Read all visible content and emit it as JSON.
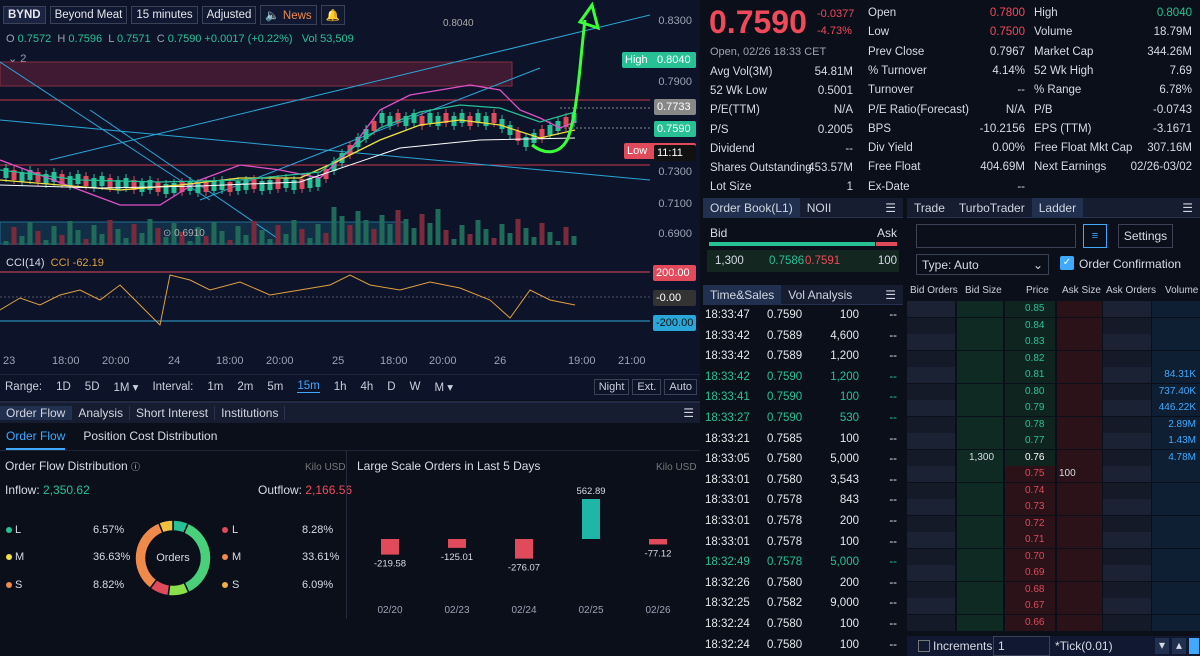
{
  "toolbar": {
    "symbol": "BYND",
    "name": "Beyond Meat",
    "interval": "15 minutes",
    "adjusted": "Adjusted",
    "news": "News"
  },
  "ohlc": {
    "o_label": "O",
    "o": "0.7572",
    "h_label": "H",
    "h": "0.7596",
    "l_label": "L",
    "l": "0.7571",
    "c_label": "C",
    "c": "0.7590",
    "change": "+0.0017 (+0.22%)",
    "vol_label": "Vol",
    "vol": "53,509",
    "sub": "2"
  },
  "price_axis": {
    "ticks": [
      "0.8300",
      "0.8040",
      "0.7900",
      "0.7733",
      "0.7590",
      "0.7300",
      "0.7100",
      "0.6900"
    ],
    "high_tag": "High",
    "high_value": "0.8040",
    "low_tag": "Low",
    "low_value": "11:11",
    "last_value": "0.7590",
    "mid_value": "0.7733",
    "annot_high": "0.8040",
    "annot_low": "0.6910"
  },
  "cci": {
    "label": "CCI(14)",
    "value_label": "CCI",
    "value": "-62.19",
    "upper": "200.00",
    "zero": "-0.00",
    "lower": "-200.00"
  },
  "x_axis": [
    "23",
    "18:00",
    "20:00",
    "24",
    "18:00",
    "20:00",
    "25",
    "18:00",
    "20:00",
    "26",
    "19:00",
    "21:00"
  ],
  "range_bar": {
    "range_label": "Range:",
    "ranges": [
      "1D",
      "5D",
      "1M ▾"
    ],
    "interval_label": "Interval:",
    "intervals": [
      "1m",
      "2m",
      "5m",
      "15m",
      "1h",
      "4h",
      "D",
      "W",
      "M ▾"
    ],
    "buttons": [
      "Night",
      "Ext.",
      "Auto"
    ]
  },
  "order_flow": {
    "tabs": [
      "Order Flow",
      "Analysis",
      "Short Interest",
      "Institutions"
    ],
    "subtabs": [
      "Order Flow",
      "Position Cost Distribution"
    ],
    "dist_title": "Order Flow Distribution",
    "unit": "Kilo USD",
    "inflow_label": "Inflow:",
    "inflow": "2,350.62",
    "outflow_label": "Outflow:",
    "outflow": "2,166.56",
    "donut_label": "Orders",
    "left": [
      {
        "k": "L",
        "v": "6.57%"
      },
      {
        "k": "M",
        "v": "36.63%"
      },
      {
        "k": "S",
        "v": "8.82%"
      }
    ],
    "right": [
      {
        "k": "L",
        "v": "8.28%"
      },
      {
        "k": "M",
        "v": "33.61%"
      },
      {
        "k": "S",
        "v": "6.09%"
      }
    ],
    "colors": {
      "L": "#27c195",
      "M": "#f0e040",
      "S": "#f08a4a"
    }
  },
  "large_orders": {
    "title": "Large Scale Orders in Last 5 Days",
    "unit": "Kilo USD",
    "type": "bar",
    "categories": [
      "02/20",
      "02/23",
      "02/24",
      "02/25",
      "02/26"
    ],
    "values": [
      -219.58,
      -125.01,
      -276.07,
      562.89,
      -77.12
    ],
    "labels": [
      "-219.58",
      "-125.01",
      "-276.07",
      "562.89",
      "-77.12"
    ]
  },
  "quote": {
    "price": "0.7590",
    "change": "-0.0377",
    "change_pct": "-4.73%",
    "time": "Open, 02/26 18:33 CET",
    "col1": [
      [
        "Open",
        "0.7800"
      ],
      [
        "Low",
        "0.7500"
      ],
      [
        "Prev Close",
        "0.7967"
      ],
      [
        "% Turnover",
        "4.14%"
      ],
      [
        "Turnover",
        "--"
      ],
      [
        "P/E Ratio(Forecast)",
        "N/A"
      ],
      [
        "BPS",
        "-10.2156"
      ],
      [
        "Div Yield",
        "0.00%"
      ],
      [
        "Free Float",
        "404.69M"
      ],
      [
        "Ex-Date",
        "--"
      ]
    ],
    "col0": [
      [
        "Avg Vol(3M)",
        "54.81M"
      ],
      [
        "52 Wk Low",
        "0.5001"
      ],
      [
        "P/E(TTM)",
        "N/A"
      ],
      [
        "P/S",
        "0.2005"
      ],
      [
        "Dividend",
        "--"
      ],
      [
        "Shares Outstanding",
        "453.57M"
      ],
      [
        "Lot Size",
        "1"
      ]
    ],
    "col2": [
      [
        "High",
        "0.8040"
      ],
      [
        "Volume",
        "18.79M"
      ],
      [
        "Market Cap",
        "344.26M"
      ],
      [
        "52 Wk High",
        "7.69"
      ],
      [
        "% Range",
        "6.78%"
      ],
      [
        "P/B",
        "-0.0743"
      ],
      [
        "EPS (TTM)",
        "-3.1671"
      ],
      [
        "Free Float Mkt Cap",
        "307.16M"
      ],
      [
        "Next Earnings",
        "02/26-03/02"
      ]
    ]
  },
  "orderbook": {
    "tabs": [
      "Order Book(L1)",
      "NOII"
    ],
    "bid": "Bid",
    "ask": "Ask",
    "bid_size": "1,300",
    "bid_price": "0.7586",
    "ask_price": "0.7591",
    "ask_size": "100"
  },
  "timesales": {
    "tabs": [
      "Time&Sales",
      "Vol Analysis"
    ],
    "rows": [
      [
        "18:33:47",
        "0.7590",
        "100",
        "--",
        "w"
      ],
      [
        "18:33:42",
        "0.7589",
        "4,600",
        "--",
        "w"
      ],
      [
        "18:33:42",
        "0.7589",
        "1,200",
        "--",
        "w"
      ],
      [
        "18:33:42",
        "0.7590",
        "1,200",
        "--",
        "g"
      ],
      [
        "18:33:41",
        "0.7590",
        "100",
        "--",
        "g"
      ],
      [
        "18:33:27",
        "0.7590",
        "530",
        "--",
        "g"
      ],
      [
        "18:33:21",
        "0.7585",
        "100",
        "--",
        "w"
      ],
      [
        "18:33:05",
        "0.7580",
        "5,000",
        "--",
        "w"
      ],
      [
        "18:33:01",
        "0.7580",
        "3,543",
        "--",
        "w"
      ],
      [
        "18:33:01",
        "0.7578",
        "843",
        "--",
        "w"
      ],
      [
        "18:33:01",
        "0.7578",
        "200",
        "--",
        "w"
      ],
      [
        "18:33:01",
        "0.7578",
        "100",
        "--",
        "w"
      ],
      [
        "18:32:49",
        "0.7578",
        "5,000",
        "--",
        "g"
      ],
      [
        "18:32:26",
        "0.7580",
        "200",
        "--",
        "w"
      ],
      [
        "18:32:25",
        "0.7582",
        "9,000",
        "--",
        "w"
      ],
      [
        "18:32:24",
        "0.7580",
        "100",
        "--",
        "w"
      ],
      [
        "18:32:24",
        "0.7580",
        "100",
        "--",
        "w"
      ]
    ]
  },
  "ladder": {
    "tabs": [
      "Trade",
      "TurboTrader",
      "Ladder"
    ],
    "settings": "Settings",
    "type": "Type: Auto",
    "order_conf": "Order Confirmation",
    "headers": [
      "Bid Orders",
      "Bid Size",
      "Price",
      "Ask Size",
      "Ask Orders",
      "Volume"
    ],
    "prices": [
      "0.85",
      "0.84",
      "0.83",
      "0.82",
      "0.81",
      "0.80",
      "0.79",
      "0.78",
      "0.77",
      "0.76",
      "0.75",
      "0.74",
      "0.73",
      "0.72",
      "0.71",
      "0.70",
      "0.69",
      "0.68",
      "0.67",
      "0.66"
    ],
    "volumes": [
      "",
      "",
      "",
      "",
      "84.31K",
      "737.40K",
      "446.22K",
      "2.89M",
      "1.43M",
      "4.78M",
      "",
      "",
      "",
      "",
      "",
      "",
      "",
      "",
      "",
      ""
    ],
    "bid_size_row": "1,300",
    "ask_size_row": "100",
    "increments": "Increments",
    "inc_value": "1",
    "tick": "*Tick(0.01)"
  }
}
